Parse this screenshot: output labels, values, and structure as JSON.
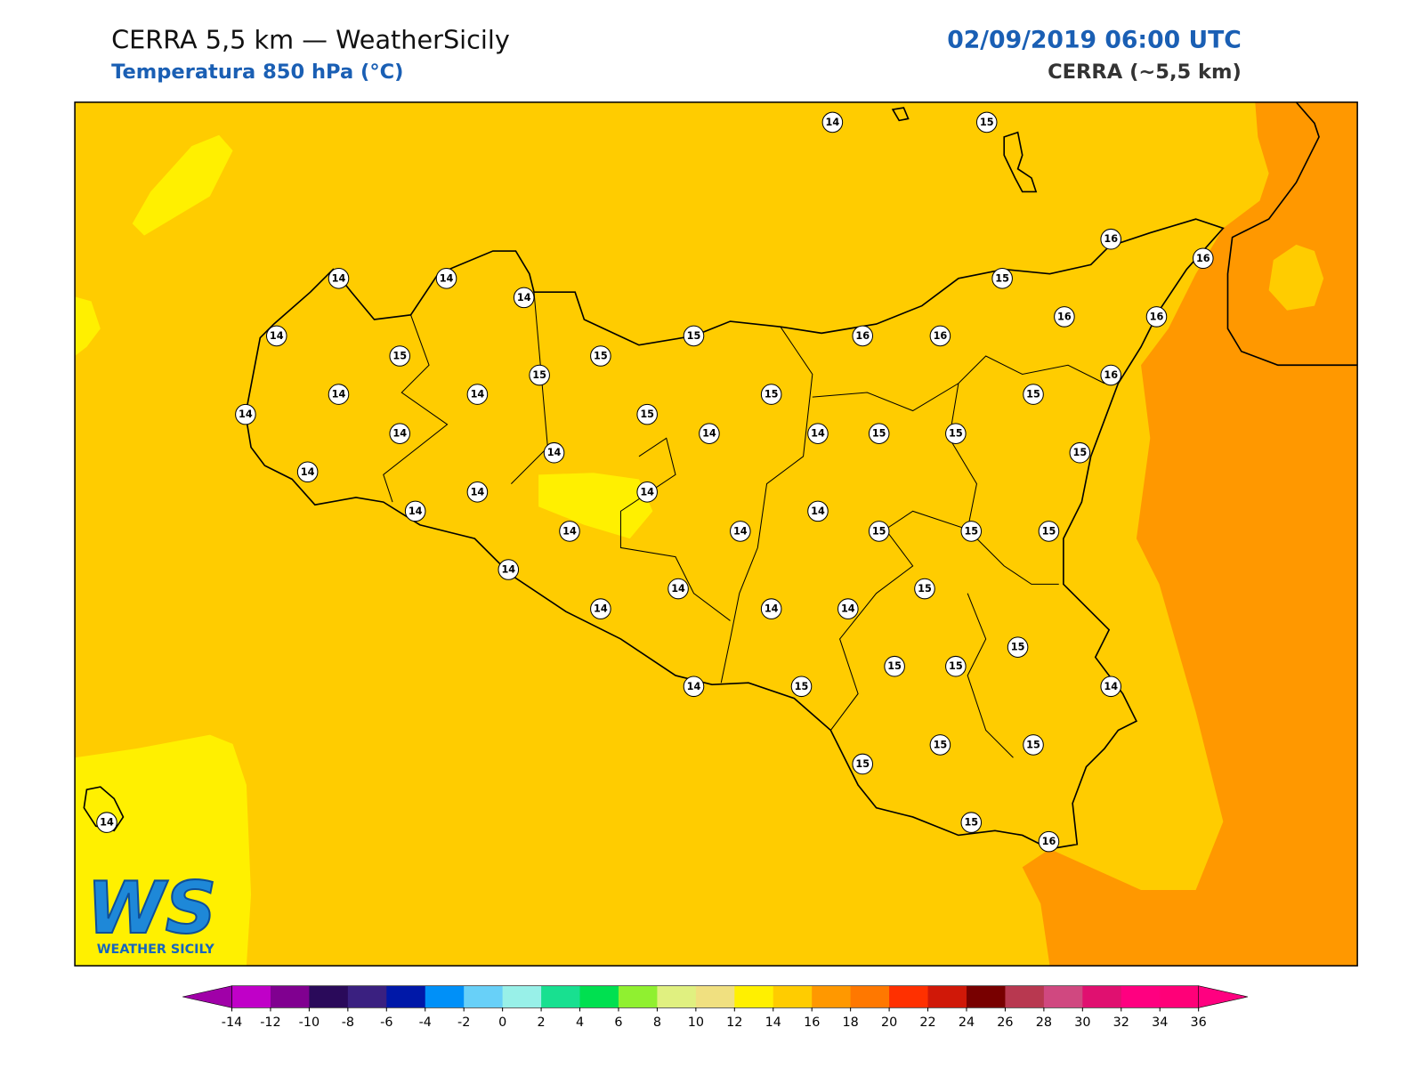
{
  "header": {
    "title": "CERRA 5,5 km — WeatherSicily",
    "subtitle": "Temperatura 850 hPa (°C)",
    "datetime": "02/09/2019 06:00 UTC",
    "model": "CERRA (~5,5 km)"
  },
  "map": {
    "stations": [
      14,
      15,
      16,
      16,
      14,
      14,
      14,
      15,
      14,
      15,
      16,
      16,
      16,
      16,
      15,
      15,
      15,
      16,
      14,
      14,
      15,
      15,
      14,
      15,
      14,
      14,
      14,
      15,
      15,
      14,
      15,
      14,
      14,
      14,
      14,
      14,
      14,
      14,
      15,
      15,
      15,
      14,
      14,
      15,
      14,
      14,
      14,
      15,
      15,
      15,
      14,
      15,
      14,
      15,
      15,
      15,
      14,
      15,
      16
    ]
  },
  "logo": {
    "mark": "WS",
    "caption": "WEATHER SICILY"
  },
  "colorbar": {
    "ticks": [
      -14,
      -12,
      -10,
      -8,
      -6,
      -4,
      -2,
      0,
      2,
      4,
      6,
      8,
      10,
      12,
      14,
      16,
      18,
      20,
      22,
      24,
      26,
      28,
      30,
      32,
      34,
      36
    ],
    "colors": [
      "#c000c8",
      "#800090",
      "#2a0a5a",
      "#3a2080",
      "#0018a8",
      "#0090f8",
      "#68d0f8",
      "#98f0e8",
      "#18e090",
      "#00e050",
      "#90f030",
      "#e0f080",
      "#f0e080",
      "#fff000",
      "#ffcc00",
      "#ff9800",
      "#ff7800",
      "#ff3000",
      "#d01808",
      "#780000",
      "#b83850",
      "#d04880",
      "#e01070",
      "#ff0080",
      "#ff0078"
    ],
    "extend_low_color": "#a000a8",
    "extend_high_color": "#ff0080"
  }
}
